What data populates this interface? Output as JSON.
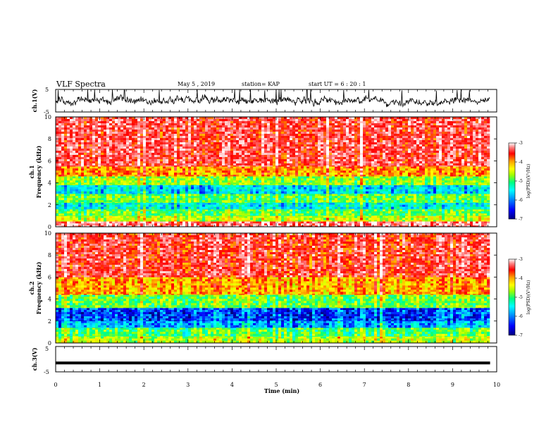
{
  "header": {
    "title": "VLF Spectra",
    "date": "May 5 , 2019",
    "station": "station= KAP",
    "start": "start UT = 6 : 20 : 1"
  },
  "chart_data": [
    {
      "type": "line",
      "name": "ch1-waveform",
      "ylabel": "ch.1(V)",
      "ylim": [
        -5,
        5
      ],
      "yticks": [
        "5",
        "-5"
      ],
      "xlim": [
        0,
        10
      ],
      "note_shape": "noisy trace near 0 V, spikes up to about +5 V"
    },
    {
      "type": "heatmap",
      "name": "ch1-spectrogram",
      "ylabel_lines": [
        "ch.1",
        "Frequency (kHz)"
      ],
      "ylim": [
        0,
        10
      ],
      "yticks": [
        "0",
        "2",
        "4",
        "6",
        "8",
        "10"
      ],
      "xlim": [
        0,
        9.85
      ],
      "bands": [
        {
          "from_khz": 0,
          "to_khz": 0.5,
          "level": -3.4
        },
        {
          "from_khz": 0.5,
          "to_khz": 1.0,
          "level": -4.8
        },
        {
          "from_khz": 1.0,
          "to_khz": 1.6,
          "level": -5.2
        },
        {
          "from_khz": 1.6,
          "to_khz": 2.2,
          "level": -5.8
        },
        {
          "from_khz": 2.2,
          "to_khz": 3.0,
          "level": -5.2
        },
        {
          "from_khz": 3.0,
          "to_khz": 3.8,
          "level": -5.9
        },
        {
          "from_khz": 3.8,
          "to_khz": 4.6,
          "level": -5.0
        },
        {
          "from_khz": 4.6,
          "to_khz": 5.5,
          "level": -4.2
        },
        {
          "from_khz": 5.5,
          "to_khz": 10.0,
          "level": -3.6
        }
      ],
      "colorbar": {
        "ticks": [
          "-3",
          "-4",
          "-5",
          "-6",
          "-7"
        ],
        "range": [
          -7,
          -3
        ],
        "label": "log(PSD)(V²/Hz)"
      }
    },
    {
      "type": "heatmap",
      "name": "ch2-spectrogram",
      "ylabel_lines": [
        "ch.2",
        "Frequency (kHz)"
      ],
      "ylim": [
        0,
        10
      ],
      "yticks": [
        "0",
        "2",
        "4",
        "6",
        "8",
        "10"
      ],
      "xlim": [
        0,
        9.85
      ],
      "bands": [
        {
          "from_khz": 0,
          "to_khz": 0.6,
          "level": -4.9
        },
        {
          "from_khz": 0.6,
          "to_khz": 1.4,
          "level": -5.3
        },
        {
          "from_khz": 1.4,
          "to_khz": 2.0,
          "level": -6.1
        },
        {
          "from_khz": 2.0,
          "to_khz": 3.2,
          "level": -6.5
        },
        {
          "from_khz": 3.2,
          "to_khz": 4.4,
          "level": -5.2
        },
        {
          "from_khz": 4.4,
          "to_khz": 6.0,
          "level": -4.3
        },
        {
          "from_khz": 6.0,
          "to_khz": 10.0,
          "level": -3.7
        }
      ],
      "colorbar": {
        "ticks": [
          "-3",
          "-4",
          "-5",
          "-6",
          "-7"
        ],
        "range": [
          -7,
          -3
        ],
        "label": "log(PSD)(V²/Hz)"
      }
    },
    {
      "type": "line",
      "name": "ch3-waveform",
      "ylabel": "ch.3(V)",
      "ylim": [
        -5,
        5
      ],
      "yticks": [
        "5",
        "-5"
      ],
      "xlim": [
        0,
        10
      ],
      "x": [
        0,
        9.85
      ],
      "y": [
        -1.5,
        -1.5
      ]
    }
  ],
  "xaxis": {
    "label": "Time (min)",
    "ticks": [
      "0",
      "1",
      "2",
      "3",
      "4",
      "5",
      "6",
      "7",
      "8",
      "9",
      "10"
    ],
    "range": [
      0,
      10
    ]
  },
  "colors": {
    "trace": "#000000",
    "colormap": [
      "#000080",
      "#0000ff",
      "#00a0ff",
      "#00ffff",
      "#00ff80",
      "#a0ff00",
      "#ffff00",
      "#ffa000",
      "#ff0000",
      "#ff8080",
      "#ffffff"
    ]
  }
}
